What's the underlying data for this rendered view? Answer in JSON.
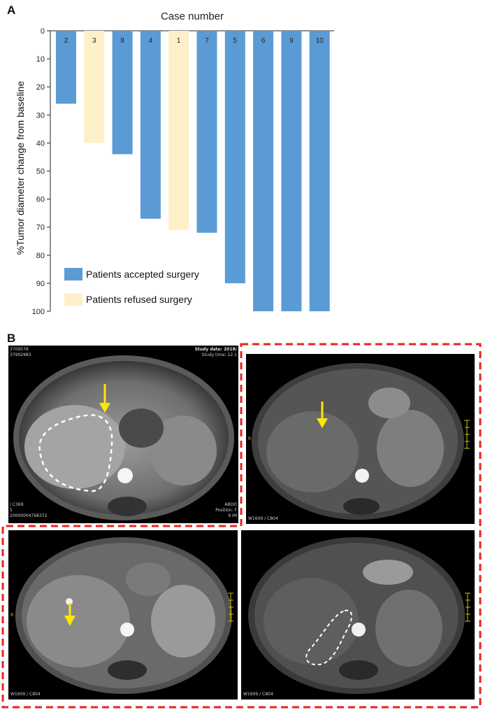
{
  "panel_a_label": "A",
  "panel_b_label": "B",
  "chart_data": {
    "type": "bar",
    "title": "Case number",
    "xlabel": "Case number",
    "ylabel": "%Tumor diameter change from baseline",
    "categories": [
      "2",
      "3",
      "8",
      "4",
      "1",
      "7",
      "5",
      "6",
      "9",
      "10"
    ],
    "values": [
      26,
      40,
      44,
      67,
      71,
      72,
      90,
      100,
      100,
      100
    ],
    "groups": [
      "accepted",
      "refused",
      "accepted",
      "accepted",
      "refused",
      "accepted",
      "accepted",
      "accepted",
      "accepted",
      "accepted"
    ],
    "yticks": [
      0,
      10,
      20,
      30,
      40,
      50,
      60,
      70,
      80,
      90,
      100
    ],
    "ylim": [
      0,
      100
    ],
    "y_inverted": true,
    "legend": [
      {
        "key": "accepted",
        "label": "Patients accepted surgery",
        "color": "#5b9bd5"
      },
      {
        "key": "refused",
        "label": "Patients refused surgery",
        "color": "#fdf0c9"
      }
    ],
    "legend_position": "bottom-left"
  },
  "mri": {
    "top_left": {
      "line1": "3709578",
      "line2": "37902983",
      "study_date": "Study date: 2018/",
      "study_time": "Study time: 12:1",
      "bottom_left1": "/ C369",
      "bottom_left2": "5",
      "bottom_left3": "20000004768372",
      "bottom_right1": "ABDO",
      "bottom_right2": "Position: F",
      "bottom_right3": "9 IM"
    },
    "top_right": {
      "bottom_left": "W1609 / C804",
      "side_marker": "R"
    },
    "bottom_left": {
      "bottom_left": "W1609 / C804",
      "side_marker": "R"
    },
    "bottom_right": {
      "bottom_left": "W1609 / C804"
    }
  },
  "colors": {
    "arrow": "#ffe600",
    "dash_red": "#e8241c",
    "outline_white": "#ffffff"
  }
}
